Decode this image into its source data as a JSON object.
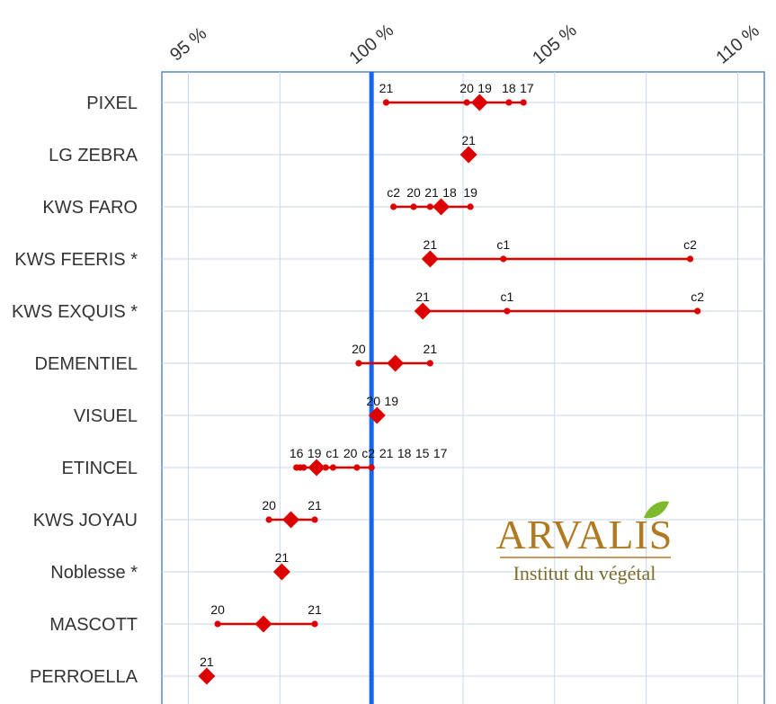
{
  "chart_data": {
    "type": "range-dot",
    "xlim": [
      94.5,
      111
    ],
    "x_ticks": [
      95,
      100,
      105,
      110
    ],
    "x_tick_labels": [
      "95 %",
      "100 %",
      "105 %",
      "110 %"
    ],
    "reference_line": 100,
    "grid": true,
    "varieties": [
      {
        "name": "PIXEL",
        "mean": 102.95,
        "points": [
          {
            "label": "21",
            "x": 100.4
          },
          {
            "label": "20",
            "x": 102.6
          },
          {
            "label": "19",
            "x": 102.95
          },
          {
            "label": "18",
            "x": 103.75
          },
          {
            "label": "17",
            "x": 104.15
          }
        ]
      },
      {
        "name": "LG ZEBRA",
        "mean": 102.65,
        "points": [
          {
            "label": "21",
            "x": 102.65
          }
        ]
      },
      {
        "name": "KWS FARO",
        "mean": 101.9,
        "points": [
          {
            "label": "c2",
            "x": 100.6
          },
          {
            "label": "20",
            "x": 101.15
          },
          {
            "label": "21",
            "x": 101.6
          },
          {
            "label": "18",
            "x": 101.9
          },
          {
            "label": "19",
            "x": 102.7
          }
        ]
      },
      {
        "name": "KWS FEERIS  *",
        "mean": 101.6,
        "points": [
          {
            "label": "21",
            "x": 101.6
          },
          {
            "label": "c1",
            "x": 103.6
          },
          {
            "label": "c2",
            "x": 108.7
          }
        ]
      },
      {
        "name": "KWS EXQUIS  *",
        "mean": 101.4,
        "points": [
          {
            "label": "21",
            "x": 101.4
          },
          {
            "label": "c1",
            "x": 103.7
          },
          {
            "label": "c2",
            "x": 108.9
          }
        ]
      },
      {
        "name": "DEMENTIEL",
        "mean": 100.65,
        "points": [
          {
            "label": "20",
            "x": 99.65
          },
          {
            "label": "21",
            "x": 101.6
          }
        ]
      },
      {
        "name": "VISUEL",
        "mean": 100.15,
        "points": [
          {
            "label": "20",
            "x": 100.05
          },
          {
            "label": "19",
            "x": 100.2
          }
        ]
      },
      {
        "name": "ETINCEL",
        "mean": 98.5,
        "points": [
          {
            "label": "16",
            "x": 97.95
          },
          {
            "label": "19",
            "x": 98.05
          },
          {
            "label": "c1",
            "x": 98.15
          },
          {
            "label": "20",
            "x": 98.5
          },
          {
            "label": "c2",
            "x": 98.5
          },
          {
            "label": "21",
            "x": 98.75
          },
          {
            "label": "18",
            "x": 98.95
          },
          {
            "label": "15",
            "x": 99.6
          },
          {
            "label": "17",
            "x": 100.0
          }
        ]
      },
      {
        "name": "KWS JOYAU",
        "mean": 97.8,
        "points": [
          {
            "label": "20",
            "x": 97.2
          },
          {
            "label": "21",
            "x": 98.45
          }
        ]
      },
      {
        "name": "Noblesse  *",
        "mean": 97.55,
        "points": [
          {
            "label": "21",
            "x": 97.55
          }
        ]
      },
      {
        "name": "MASCOTT",
        "mean": 97.05,
        "points": [
          {
            "label": "20",
            "x": 95.8
          },
          {
            "label": "21",
            "x": 98.45
          }
        ]
      },
      {
        "name": "PERROELLA",
        "mean": 95.5,
        "points": [
          {
            "label": "21",
            "x": 95.5
          }
        ]
      }
    ]
  },
  "logo": {
    "name": "ARVALIS",
    "subtitle": "Institut du végétal"
  },
  "colors": {
    "series": "#dd0000",
    "reference": "#1565f0",
    "grid": "#c8d6f0",
    "frame": "#5b86c8",
    "logo_leaf": "#7dbb2c"
  }
}
